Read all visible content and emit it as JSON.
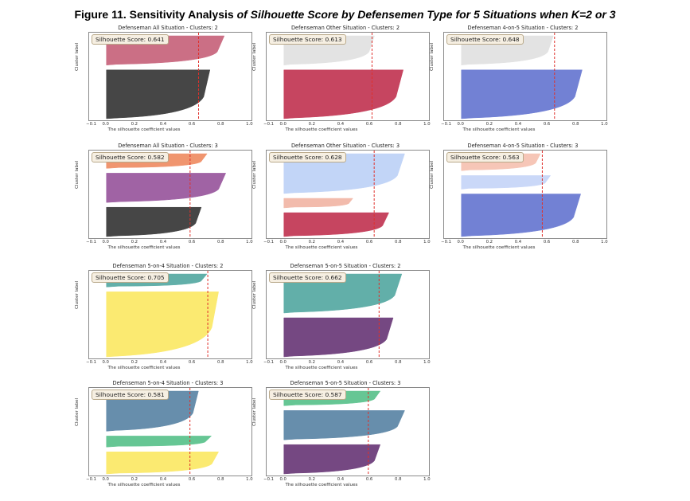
{
  "figure_title": {
    "prefix": "Figure 11. Sensitivity Analysis ",
    "italic": "of Silhouette Score by Defensemen Type for 5 Situations when K=2 or 3"
  },
  "common": {
    "ylabel": "Cluster label",
    "xlabel": "The silhouette coefficient values",
    "xticks": [
      "−0.1",
      "0.0",
      "0.2",
      "0.4",
      "0.6",
      "0.8",
      "1.0"
    ],
    "xtick_values": [
      -0.1,
      0.0,
      0.2,
      0.4,
      0.6,
      0.8,
      1.0
    ],
    "xlim": [
      -0.12,
      1.02
    ]
  },
  "chart_data": [
    {
      "type": "silhouette",
      "title": "Defenseman All Situation - Clusters: 2",
      "score_label": "Silhouette Score: 0.641",
      "avg": 0.641,
      "clusters": [
        {
          "label": "1",
          "max": 0.72,
          "min": 0.05,
          "size": 5,
          "color": "#3d3d3d"
        },
        {
          "label": "2",
          "max": 0.82,
          "min": 0.03,
          "size": 3,
          "color": "#c9687f"
        }
      ]
    },
    {
      "type": "silhouette",
      "title": "Defenseman Other Situation - Clusters: 2",
      "score_label": "Silhouette Score: 0.613",
      "avg": 0.613,
      "clusters": [
        {
          "label": "1",
          "max": 0.83,
          "min": 0.03,
          "size": 5,
          "color": "#c43c58"
        },
        {
          "label": "2",
          "max": 0.63,
          "min": 0.02,
          "size": 3,
          "color": "#e2e2e2"
        }
      ]
    },
    {
      "type": "silhouette",
      "title": "Defenseman 4-on-5 Situation - Clusters: 2",
      "score_label": "Silhouette Score: 0.648",
      "avg": 0.648,
      "clusters": [
        {
          "label": "1",
          "max": 0.84,
          "min": 0.04,
          "size": 5,
          "color": "#6b7bd2"
        },
        {
          "label": "2",
          "max": 0.64,
          "min": 0.02,
          "size": 3,
          "color": "#e2e2e2"
        }
      ]
    },
    {
      "type": "silhouette",
      "title": "Defenseman All Situation - Clusters: 3",
      "score_label": "Silhouette Score: 0.582",
      "avg": 0.582,
      "clusters": [
        {
          "label": "1",
          "max": 0.66,
          "min": 0.05,
          "size": 4,
          "color": "#3d3d3d"
        },
        {
          "label": "2",
          "max": 0.83,
          "min": 0.06,
          "size": 4,
          "color": "#9b5ba0"
        },
        {
          "label": "3",
          "max": 0.7,
          "min": 0.05,
          "size": 2,
          "color": "#f09068"
        }
      ]
    },
    {
      "type": "silhouette",
      "title": "Defenseman Other Situation - Clusters: 3",
      "score_label": "Silhouette Score: 0.628",
      "avg": 0.628,
      "clusters": [
        {
          "label": "1",
          "max": 0.73,
          "min": 0.03,
          "size": 3,
          "color": "#c43c58"
        },
        {
          "label": "2",
          "max": 0.48,
          "min": 0.05,
          "size": 1.2,
          "color": "#f2b8a8"
        },
        {
          "label": "3",
          "max": 0.84,
          "min": 0.03,
          "size": 5,
          "color": "#bfd3f7"
        }
      ]
    },
    {
      "type": "silhouette",
      "title": "Defenseman 4-on-5 Situation - Clusters: 3",
      "score_label": "Silhouette Score: 0.563",
      "avg": 0.563,
      "clusters": [
        {
          "label": "1",
          "max": 0.83,
          "min": 0.03,
          "size": 5,
          "color": "#6b7bd2"
        },
        {
          "label": "2",
          "max": 0.62,
          "min": 0.02,
          "size": 1.6,
          "color": "#c8d6f8"
        },
        {
          "label": "3",
          "max": 0.55,
          "min": 0.03,
          "size": 2,
          "color": "#f6c4b4"
        }
      ]
    },
    {
      "type": "silhouette",
      "title": "Defenseman 5-on-4 Situation - Clusters: 2",
      "score_label": "Silhouette Score: 0.705",
      "avg": 0.705,
      "clusters": [
        {
          "label": "1",
          "max": 0.78,
          "min": 0.05,
          "size": 7,
          "color": "#fbe96a"
        },
        {
          "label": "2",
          "max": 0.7,
          "min": 0.05,
          "size": 1.4,
          "color": "#5aaba5"
        }
      ]
    },
    {
      "type": "silhouette",
      "title": "Defenseman 5-on-5 Situation - Clusters: 2",
      "score_label": "Silhouette Score: 0.662",
      "avg": 0.662,
      "clusters": [
        {
          "label": "1",
          "max": 0.76,
          "min": 0.03,
          "size": 4,
          "color": "#6e3f7c"
        },
        {
          "label": "2",
          "max": 0.82,
          "min": 0.03,
          "size": 4,
          "color": "#5aaba5"
        }
      ]
    },
    {
      "type": "silhouette",
      "title": "Defenseman 5-on-4 Situation - Clusters: 3",
      "score_label": "Silhouette Score: 0.581",
      "avg": 0.581,
      "clusters": [
        {
          "label": "1",
          "max": 0.78,
          "min": 0.05,
          "size": 2.2,
          "color": "#fbe96a"
        },
        {
          "label": "2",
          "max": 0.73,
          "min": 0.05,
          "size": 1.1,
          "color": "#5ec38f"
        },
        {
          "label": "3",
          "max": 0.64,
          "min": 0.03,
          "size": 4,
          "color": "#5f88a8"
        }
      ]
    },
    {
      "type": "silhouette",
      "title": "Defenseman 5-on-5 Situation - Clusters: 3",
      "score_label": "Silhouette Score: 0.587",
      "avg": 0.587,
      "clusters": [
        {
          "label": "1",
          "max": 0.67,
          "min": 0.05,
          "size": 3,
          "color": "#6e3f7c"
        },
        {
          "label": "2",
          "max": 0.84,
          "min": 0.05,
          "size": 3,
          "color": "#5f88a8"
        },
        {
          "label": "3",
          "max": 0.67,
          "min": 0.05,
          "size": 1.5,
          "color": "#5ec38f"
        }
      ]
    }
  ]
}
